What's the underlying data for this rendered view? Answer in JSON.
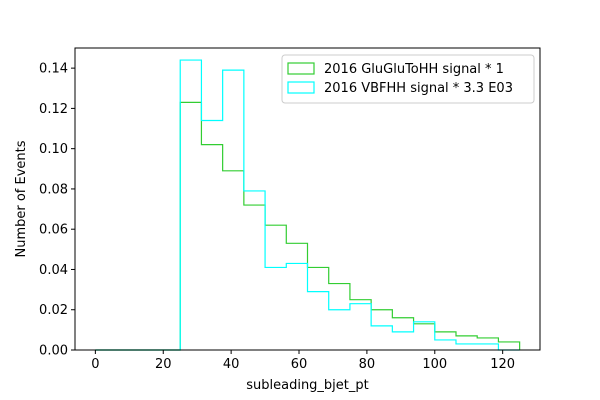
{
  "chart_data": {
    "type": "histogram-step",
    "xlabel": "subleading_bjet_pt",
    "ylabel": "Number of Events",
    "xlim": [
      -6,
      131
    ],
    "ylim": [
      0,
      0.15
    ],
    "xticks": [
      0,
      20,
      40,
      60,
      80,
      100,
      120
    ],
    "xtick_labels": [
      "0",
      "20",
      "40",
      "60",
      "80",
      "100",
      "120"
    ],
    "yticks": [
      0.0,
      0.02,
      0.04,
      0.06,
      0.08,
      0.1,
      0.12,
      0.14
    ],
    "ytick_labels": [
      "0.00",
      "0.02",
      "0.04",
      "0.06",
      "0.08",
      "0.10",
      "0.12",
      "0.14"
    ],
    "grid": false,
    "legend_position": "top-right",
    "bin_edges": [
      0,
      6.25,
      12.5,
      18.75,
      25,
      31.25,
      37.5,
      43.75,
      50,
      56.25,
      62.5,
      68.75,
      75,
      81.25,
      87.5,
      93.75,
      100,
      106.25,
      112.5,
      118.75,
      125
    ],
    "series": [
      {
        "name": "2016 GluGluToHH signal * 1",
        "color": "#32cd32",
        "values": [
          0,
          0,
          0,
          0,
          0.123,
          0.102,
          0.089,
          0.072,
          0.062,
          0.053,
          0.041,
          0.033,
          0.025,
          0.02,
          0.016,
          0.013,
          0.009,
          0.007,
          0.006,
          0.004
        ]
      },
      {
        "name": "2016 VBFHH signal * 3.3 E03",
        "color": "#00ffff",
        "values": [
          0,
          0,
          0,
          0,
          0.144,
          0.114,
          0.139,
          0.079,
          0.041,
          0.043,
          0.029,
          0.02,
          0.023,
          0.012,
          0.009,
          0.014,
          0.005,
          0.003,
          0.003,
          0
        ]
      }
    ]
  }
}
